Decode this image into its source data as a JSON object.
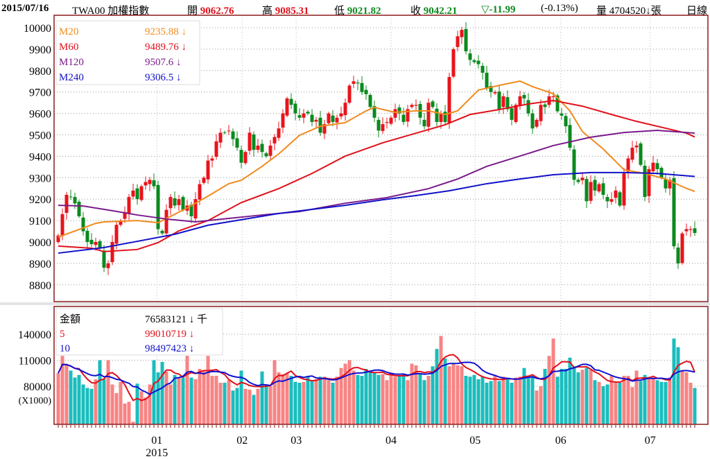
{
  "header": {
    "date": "2015/07/16",
    "symbol": "TWA00 加權指數",
    "open_label": "開",
    "open": "9062.76",
    "high_label": "高",
    "high": "9085.31",
    "low_label": "低",
    "low": "9021.82",
    "close_label": "收",
    "close": "9042.21",
    "change": "▽-11.99",
    "change_pct": "(-0.13%)",
    "volume_label": "量",
    "volume": "4704520↓",
    "volume_unit": "張",
    "period": "日線"
  },
  "colors": {
    "up": "#e8141c",
    "down": "#0a8a1e",
    "vol_up": "#f88383",
    "vol_down": "#1bbdbd",
    "ma20": "#f08a1c",
    "ma60": "#e0101a",
    "ma120": "#7a1a8a",
    "ma240": "#1010c8",
    "vol_ma5": "#e0101a",
    "vol_ma10": "#1010d0",
    "frame": "#8b1a1a"
  },
  "legend_price": [
    {
      "name": "M20",
      "value": "9235.88 ↓"
    },
    {
      "name": "M60",
      "value": "9489.76 ↓"
    },
    {
      "name": "M120",
      "value": "9507.6 ↓"
    },
    {
      "name": "M240",
      "value": "9306.5 ↓"
    }
  ],
  "legend_volume": [
    {
      "name": "金額",
      "value": "76583121 ↓ 千"
    },
    {
      "name": "5",
      "value": "99010719 ↓"
    },
    {
      "name": "10",
      "value": "98497423 ↓"
    }
  ],
  "chart_data": [
    {
      "type": "candlestick",
      "title": "TWA00 加權指數 日線",
      "ylim": [
        8750,
        10060
      ],
      "yticks": [
        "10000",
        "9900",
        "9800",
        "9700",
        "9600",
        "9500",
        "9400",
        "9300",
        "9200",
        "9100",
        "9000",
        "8900",
        "8800"
      ],
      "x_labels": [
        {
          "i": 23.7,
          "label": "01",
          "sub": "2015"
        },
        {
          "i": 44.2,
          "label": "02"
        },
        {
          "i": 57.2,
          "label": "03"
        },
        {
          "i": 80,
          "label": "04"
        },
        {
          "i": 100.2,
          "label": "05"
        },
        {
          "i": 120.8,
          "label": "06"
        },
        {
          "i": 142.3,
          "label": "07"
        }
      ],
      "closes": [
        9030,
        9130,
        9220,
        9210,
        9180,
        9120,
        9050,
        9000,
        8990,
        9000,
        8970,
        8880,
        8900,
        9000,
        9080,
        9100,
        9140,
        9210,
        9240,
        9200,
        9260,
        9280,
        9290,
        9260,
        9060,
        9040,
        9150,
        9210,
        9170,
        9200,
        9150,
        9170,
        9120,
        9200,
        9270,
        9300,
        9380,
        9390,
        9470,
        9510,
        9510,
        9520,
        9480,
        9440,
        9370,
        9420,
        9510,
        9430,
        9450,
        9420,
        9400,
        9450,
        9490,
        9530,
        9600,
        9670,
        9640,
        9600,
        9580,
        9600,
        9600,
        9560,
        9570,
        9510,
        9550,
        9600,
        9560,
        9580,
        9600,
        9650,
        9730,
        9750,
        9740,
        9700,
        9690,
        9630,
        9580,
        9520,
        9550,
        9560,
        9580,
        9620,
        9600,
        9560,
        9620,
        9640,
        9640,
        9580,
        9540,
        9650,
        9630,
        9560,
        9600,
        9560,
        9770,
        9900,
        9960,
        9990,
        9890,
        9850,
        9840,
        9830,
        9790,
        9720,
        9700,
        9700,
        9620,
        9680,
        9620,
        9570,
        9640,
        9680,
        9670,
        9600,
        9530,
        9570,
        9640,
        9630,
        9680,
        9680,
        9610,
        9590,
        9540,
        9440,
        9290,
        9280,
        9300,
        9190,
        9280,
        9240,
        9270,
        9220,
        9190,
        9200,
        9240,
        9170,
        9320,
        9390,
        9440,
        9450,
        9360,
        9210,
        9340,
        9370,
        9340,
        9300,
        9250,
        9290,
        8980,
        8900,
        9040,
        9060,
        9060,
        9042
      ],
      "ma_lines": [
        {
          "name": "M20",
          "points": [
            [
              0,
              9023
            ],
            [
              9,
              9087
            ],
            [
              11,
              9094
            ],
            [
              19,
              9100
            ],
            [
              24,
              9090
            ],
            [
              31,
              9159
            ],
            [
              36,
              9214
            ],
            [
              41,
              9272
            ],
            [
              44,
              9288
            ],
            [
              49,
              9353
            ],
            [
              53,
              9411
            ],
            [
              58,
              9498
            ],
            [
              63,
              9540
            ],
            [
              69,
              9557
            ],
            [
              74,
              9612
            ],
            [
              76,
              9628
            ],
            [
              81,
              9605
            ],
            [
              86,
              9612
            ],
            [
              89,
              9612
            ],
            [
              93,
              9595
            ],
            [
              96,
              9612
            ],
            [
              101,
              9709
            ],
            [
              106,
              9731
            ],
            [
              111,
              9751
            ],
            [
              114,
              9725
            ],
            [
              119,
              9692
            ],
            [
              123,
              9612
            ],
            [
              126,
              9515
            ],
            [
              131,
              9434
            ],
            [
              136,
              9337
            ],
            [
              141,
              9320
            ],
            [
              146,
              9294
            ],
            [
              151,
              9250
            ],
            [
              153,
              9236
            ]
          ]
        },
        {
          "name": "M60",
          "points": [
            [
              0,
              8981
            ],
            [
              8,
              8971
            ],
            [
              11,
              8955
            ],
            [
              19,
              8965
            ],
            [
              24,
              8997
            ],
            [
              29,
              9052
            ],
            [
              36,
              9100
            ],
            [
              44,
              9184
            ],
            [
              53,
              9249
            ],
            [
              61,
              9320
            ],
            [
              69,
              9401
            ],
            [
              78,
              9463
            ],
            [
              86,
              9508
            ],
            [
              93,
              9547
            ],
            [
              99,
              9595
            ],
            [
              106,
              9618
            ],
            [
              113,
              9644
            ],
            [
              119,
              9660
            ],
            [
              126,
              9634
            ],
            [
              133,
              9595
            ],
            [
              139,
              9563
            ],
            [
              146,
              9531
            ],
            [
              151,
              9508
            ],
            [
              153,
              9490
            ]
          ]
        },
        {
          "name": "M120",
          "points": [
            [
              0,
              9171
            ],
            [
              6,
              9168
            ],
            [
              13,
              9146
            ],
            [
              19,
              9126
            ],
            [
              26,
              9107
            ],
            [
              33,
              9094
            ],
            [
              41,
              9110
            ],
            [
              49,
              9126
            ],
            [
              58,
              9142
            ],
            [
              69,
              9181
            ],
            [
              79,
              9207
            ],
            [
              89,
              9249
            ],
            [
              96,
              9294
            ],
            [
              103,
              9353
            ],
            [
              111,
              9401
            ],
            [
              119,
              9450
            ],
            [
              128,
              9489
            ],
            [
              136,
              9511
            ],
            [
              144,
              9521
            ],
            [
              153,
              9508
            ]
          ]
        },
        {
          "name": "M240",
          "points": [
            [
              0,
              8948
            ],
            [
              11,
              8974
            ],
            [
              19,
              9003
            ],
            [
              28,
              9036
            ],
            [
              36,
              9078
            ],
            [
              44,
              9104
            ],
            [
              53,
              9133
            ],
            [
              61,
              9152
            ],
            [
              69,
              9171
            ],
            [
              78,
              9197
            ],
            [
              86,
              9217
            ],
            [
              94,
              9239
            ],
            [
              103,
              9272
            ],
            [
              111,
              9294
            ],
            [
              119,
              9314
            ],
            [
              128,
              9324
            ],
            [
              136,
              9324
            ],
            [
              144,
              9320
            ],
            [
              153,
              9306
            ]
          ]
        }
      ]
    },
    {
      "type": "bar",
      "title": "金額 (X1000)",
      "ylim": [
        36000,
        175000
      ],
      "yticks": [
        "140000",
        "110000",
        "80000"
      ],
      "y_unit": "(X1000)",
      "values": [
        95000,
        115000,
        105000,
        98000,
        90000,
        93000,
        82000,
        78000,
        77000,
        88000,
        110000,
        88000,
        110000,
        82000,
        72000,
        85000,
        60000,
        62000,
        39000,
        83000,
        74000,
        67000,
        82000,
        110000,
        96000,
        108000,
        97000,
        82000,
        93000,
        90000,
        90000,
        115000,
        90000,
        88000,
        100000,
        97000,
        115000,
        92000,
        92000,
        84000,
        84000,
        87000,
        75000,
        78000,
        98000,
        77000,
        76000,
        70000,
        77000,
        97000,
        80000,
        80000,
        110000,
        96000,
        94000,
        95000,
        92000,
        85000,
        84000,
        85000,
        91000,
        86000,
        88000,
        91000,
        91000,
        87000,
        84000,
        91000,
        101000,
        106000,
        110000,
        98000,
        93000,
        92000,
        100000,
        98000,
        96000,
        93000,
        94000,
        87000,
        96000,
        91000,
        92000,
        94000,
        87000,
        106000,
        104000,
        94000,
        87000,
        92000,
        103000,
        123000,
        138000,
        112000,
        103000,
        106000,
        104000,
        103000,
        92000,
        91000,
        93000,
        88000,
        91000,
        84000,
        86000,
        92000,
        86000,
        91000,
        89000,
        84000,
        90000,
        91000,
        101000,
        92000,
        92000,
        75000,
        80000,
        100000,
        115000,
        135000,
        91000,
        100000,
        100000,
        113000,
        103000,
        96000,
        99000,
        101000,
        99000,
        87000,
        85000,
        80000,
        82000,
        92000,
        85000,
        84000,
        92000,
        92000,
        79000,
        98000,
        86000,
        93000,
        91000,
        89000,
        87000,
        85000,
        85000,
        90000,
        135000,
        125000,
        98000,
        96000,
        84000,
        78000
      ],
      "ma_periods": [
        5,
        10
      ]
    }
  ]
}
